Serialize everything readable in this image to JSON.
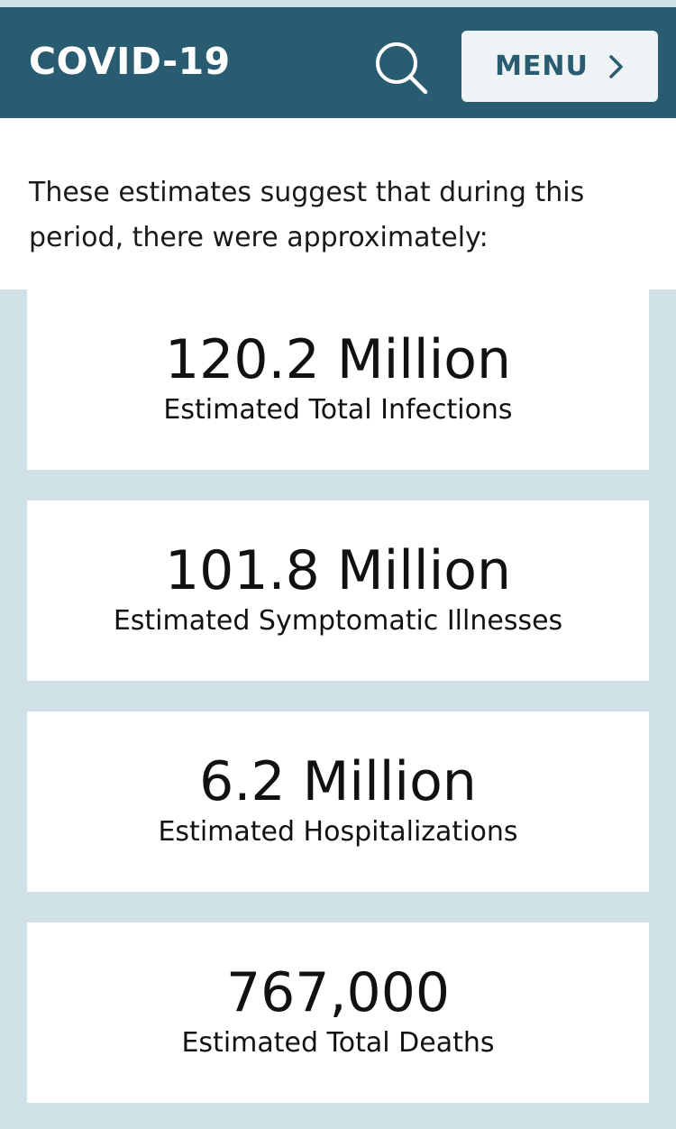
{
  "header": {
    "title": "COVID-19",
    "search_icon": "search-icon",
    "menu_label": "MENU",
    "menu_icon": "chevron-right-icon",
    "colors": {
      "bar": "#2a5c71",
      "menu_bg": "#eef4f6"
    }
  },
  "intro": {
    "text": "These estimates suggest that during this period, there were approximately:"
  },
  "stats": [
    {
      "value": "120.2 Million",
      "label": "Estimated Total Infections"
    },
    {
      "value": "101.8 Million",
      "label": "Estimated Symptomatic Illnesses"
    },
    {
      "value": "6.2 Million",
      "label": "Estimated Hospitalizations"
    },
    {
      "value": "767,000",
      "label": "Estimated Total Deaths"
    }
  ],
  "colors": {
    "panel_bg": "#cfe1e6",
    "card_bg": "#ffffff"
  }
}
